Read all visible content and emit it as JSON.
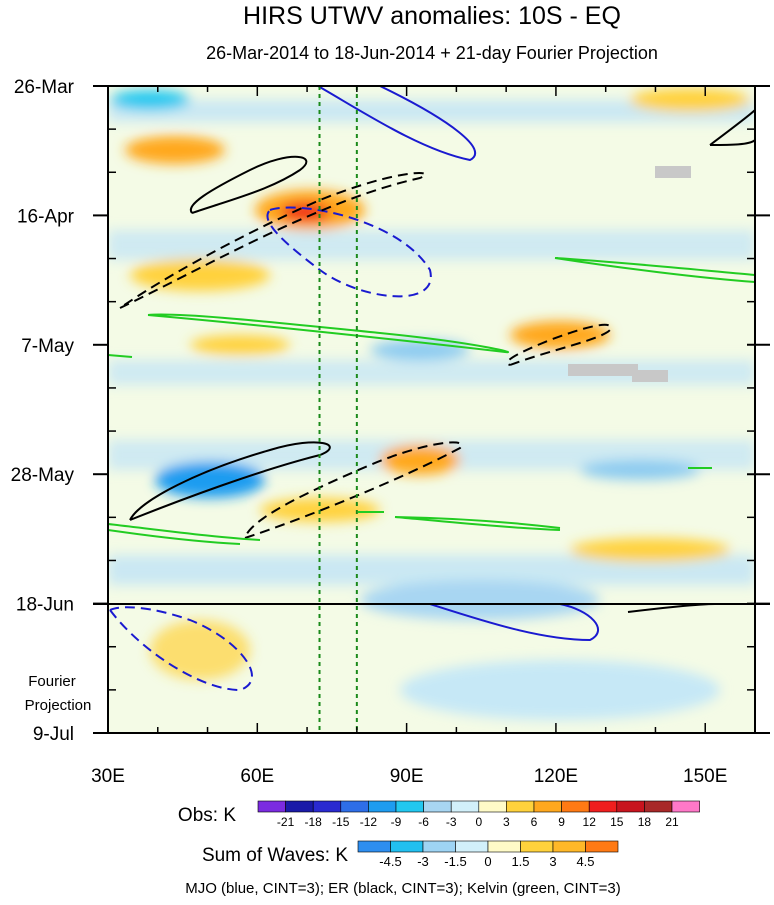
{
  "chart_data": {
    "type": "heatmap",
    "title": "HIRS UTWV anomalies: 10S - EQ",
    "subtitle": "26-Mar-2014 to 18-Jun-2014 + 21-day Fourier Projection",
    "x_ticks": [
      {
        "label": "30E",
        "lon": 30
      },
      {
        "label": "60E",
        "lon": 60
      },
      {
        "label": "90E",
        "lon": 90
      },
      {
        "label": "120E",
        "lon": 120
      },
      {
        "label": "150E",
        "lon": 150
      }
    ],
    "x_range": [
      30,
      160
    ],
    "y_ticks": [
      {
        "label": "26-Mar",
        "day": 0
      },
      {
        "label": "16-Apr",
        "day": 21
      },
      {
        "label": "7-May",
        "day": 42
      },
      {
        "label": "28-May",
        "day": 63
      },
      {
        "label": "18-Jun",
        "day": 84
      },
      {
        "label": "9-Jul",
        "day": 105
      }
    ],
    "y_range_days": [
      0,
      105
    ],
    "projection_label": [
      "Fourier",
      "Projection"
    ],
    "obs_legend": {
      "title": "Obs: K",
      "labels": [
        "-21",
        "-18",
        "-15",
        "-12",
        "-9",
        "-6",
        "-3",
        "0",
        "3",
        "6",
        "9",
        "12",
        "15",
        "18",
        "21"
      ],
      "colors": [
        "#7b2be0",
        "#1a1aa8",
        "#2a2ad0",
        "#2e6ee8",
        "#1e9cf0",
        "#22c8f0",
        "#a8d6f2",
        "#d2f0fa",
        "#fffbc8",
        "#ffd23c",
        "#ffa81e",
        "#ff7a14",
        "#f01e1e",
        "#c8141e",
        "#a82828",
        "#ff78c8"
      ]
    },
    "waves_legend": {
      "title": "Sum of Waves: K",
      "labels": [
        "-4.5",
        "-3",
        "-1.5",
        "0",
        "1.5",
        "3",
        "4.5"
      ],
      "colors": [
        "#2e8ef0",
        "#22c0f0",
        "#9ed4f4",
        "#d2f0fa",
        "#fffbc8",
        "#ffd23c",
        "#ffb828",
        "#ff7a14"
      ]
    },
    "contour_caption": "MJO (blue, CINT=3); ER (black, CINT=3); Kelvin (green, CINT=3)",
    "reference_lines_lon": [
      72.5,
      80
    ]
  }
}
